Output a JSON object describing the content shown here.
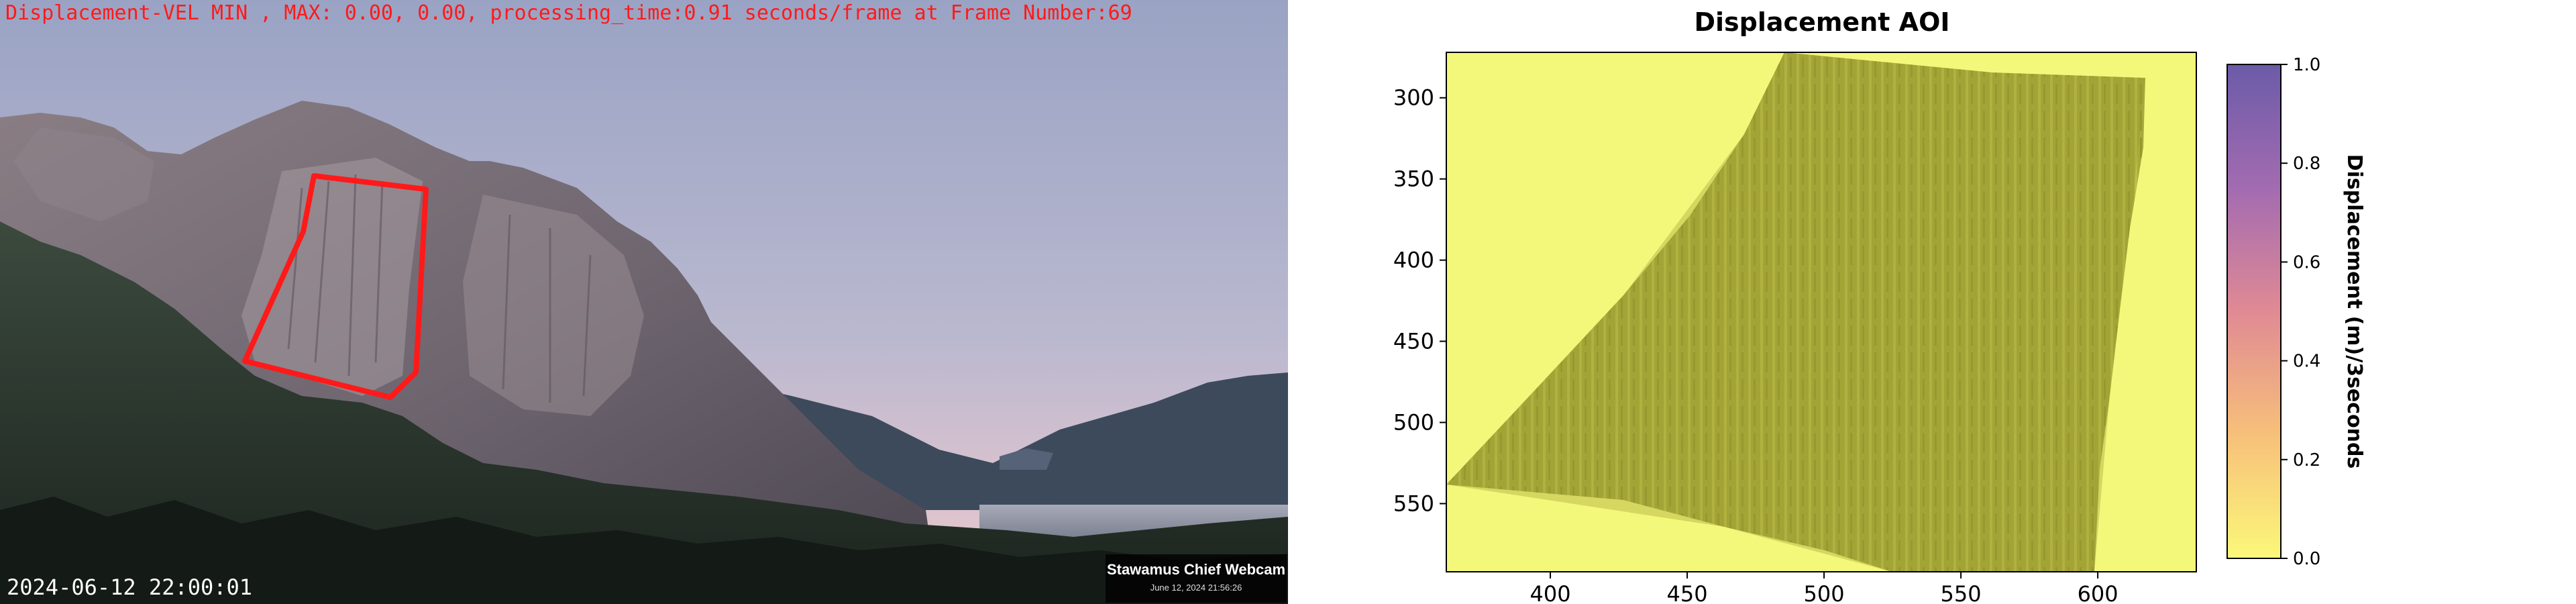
{
  "overlay": {
    "status_line": "Displacement-VEL MIN , MAX: 0.00, 0.00, processing_time:0.91 seconds/frame at Frame Number:69",
    "timestamp": "2024-06-12 22:00:01"
  },
  "webcam_badge": {
    "title": "Stawamus Chief Webcam",
    "date": "June 12, 2024 21:56:26"
  },
  "colors": {
    "overlay_text": "#ff1a1a",
    "aoi_outline": "#ff1a1a",
    "heatmap_background": "#f4f87a",
    "heatmap_texture": "#b0b13a",
    "colorbar_top": "#6b5ba8",
    "colorbar_bottom": "#fbf87a"
  },
  "chart_data": {
    "type": "heatmap",
    "title": "Displacement AOI",
    "xlabel": "",
    "ylabel": "",
    "x_ticks": [
      400,
      450,
      500,
      550,
      600
    ],
    "y_ticks": [
      300,
      350,
      400,
      450,
      500,
      550
    ],
    "xlim": [
      362,
      636
    ],
    "ylim": [
      592,
      272
    ],
    "values_summary": {
      "min": 0.0,
      "max": 0.0
    },
    "colorbar": {
      "label": "Displacement (m)/3seconds",
      "ticks": [
        "0.0",
        "0.2",
        "0.4",
        "0.6",
        "0.8",
        "1.0"
      ],
      "range": [
        0.0,
        1.0
      ]
    }
  }
}
